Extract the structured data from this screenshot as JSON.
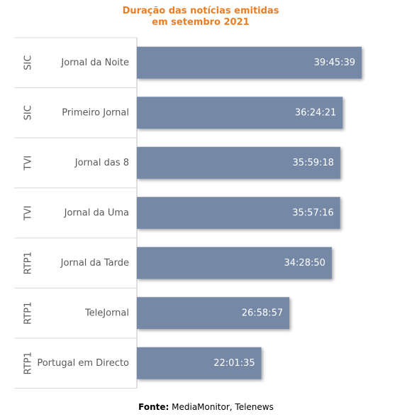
{
  "chart_data": {
    "type": "bar",
    "orientation": "horizontal",
    "title": [
      "Duração das notícias emitidas",
      "em setembro 2021"
    ],
    "categories": [
      {
        "channel": "SIC",
        "program": "Jornal da Noite"
      },
      {
        "channel": "SIC",
        "program": "Primeiro Jornal"
      },
      {
        "channel": "TVI",
        "program": "Jornal das 8"
      },
      {
        "channel": "TVI",
        "program": "Jornal da Uma"
      },
      {
        "channel": "RTP1",
        "program": "Jornal da Tarde"
      },
      {
        "channel": "RTP1",
        "program": "TeleJornal"
      },
      {
        "channel": "RTP1",
        "program": "Portugal em Directo"
      }
    ],
    "values": [
      143139,
      131061,
      129558,
      129436,
      124130,
      97137,
      79295
    ],
    "value_labels": [
      "39:45:39",
      "36:24:21",
      "35:59:18",
      "35:57:16",
      "34:28:50",
      "26:58:57",
      "22:01:35"
    ],
    "xlim": [
      0,
      160000
    ],
    "bar_color": "#7489a7",
    "title_color": "#ee7d22",
    "grid": false,
    "legend": "none"
  },
  "source": {
    "label": "Fonte:",
    "text": " MediaMonitor, Telenews"
  }
}
